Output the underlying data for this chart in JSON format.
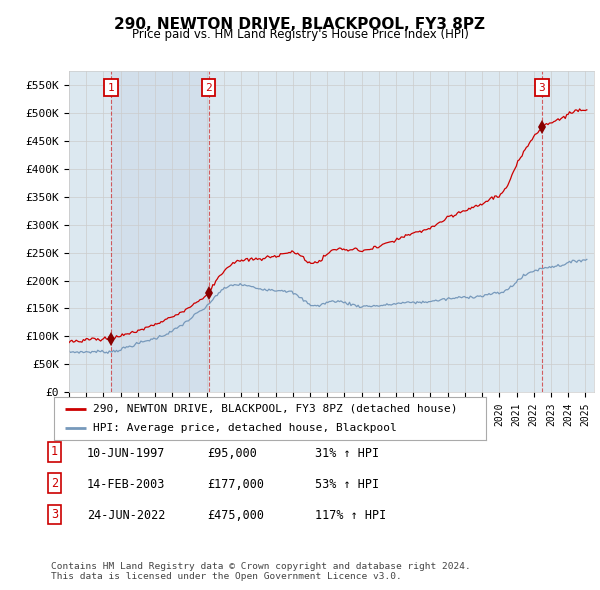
{
  "title": "290, NEWTON DRIVE, BLACKPOOL, FY3 8PZ",
  "subtitle": "Price paid vs. HM Land Registry's House Price Index (HPI)",
  "red_label": "290, NEWTON DRIVE, BLACKPOOL, FY3 8PZ (detached house)",
  "blue_label": "HPI: Average price, detached house, Blackpool",
  "footer1": "Contains HM Land Registry data © Crown copyright and database right 2024.",
  "footer2": "This data is licensed under the Open Government Licence v3.0.",
  "transactions": [
    {
      "num": 1,
      "date": "10-JUN-1997",
      "price": 95000,
      "hpi_pct": "31% ↑ HPI",
      "year": 1997.44
    },
    {
      "num": 2,
      "date": "14-FEB-2003",
      "price": 177000,
      "hpi_pct": "53% ↑ HPI",
      "year": 2003.12
    },
    {
      "num": 3,
      "date": "24-JUN-2022",
      "price": 475000,
      "hpi_pct": "117% ↑ HPI",
      "year": 2022.48
    }
  ],
  "ylim": [
    0,
    575000
  ],
  "xlim_start": 1995.0,
  "xlim_end": 2025.5,
  "yticks": [
    0,
    50000,
    100000,
    150000,
    200000,
    250000,
    300000,
    350000,
    400000,
    450000,
    500000,
    550000
  ],
  "ytick_labels": [
    "£0",
    "£50K",
    "£100K",
    "£150K",
    "£200K",
    "£250K",
    "£300K",
    "£350K",
    "£400K",
    "£450K",
    "£500K",
    "£550K"
  ],
  "grid_color": "#cccccc",
  "plot_bg_color": "#dce8f0",
  "shade_color": "#ccd9e8",
  "red_color": "#cc0000",
  "blue_color": "#7799bb",
  "marker_color": "#880000"
}
